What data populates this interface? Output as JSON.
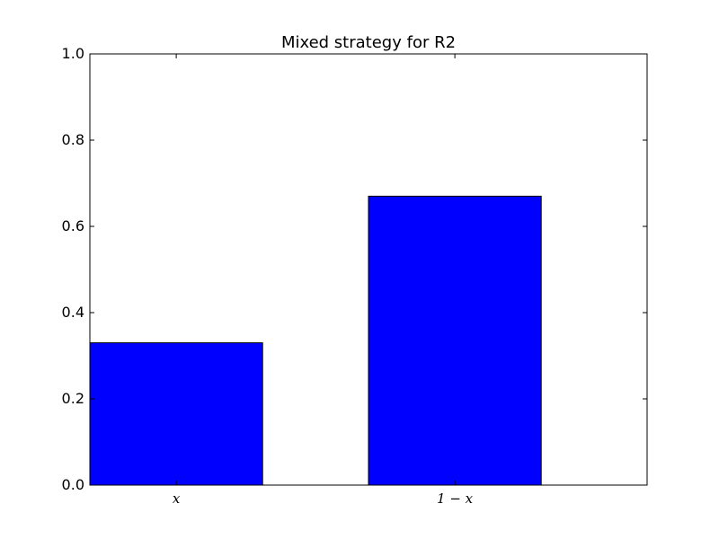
{
  "chart_data": {
    "type": "bar",
    "title": "Mixed strategy for R2",
    "categories": [
      "x",
      "1 − x"
    ],
    "values": [
      0.33,
      0.67
    ],
    "ylim": [
      0,
      1.0
    ],
    "yticks": [
      "0.0",
      "0.2",
      "0.4",
      "0.6",
      "0.8",
      "1.0"
    ],
    "xlabel": "",
    "ylabel": "",
    "grid": false,
    "bar_color": "#0000ff",
    "edge_color": "#000000"
  }
}
